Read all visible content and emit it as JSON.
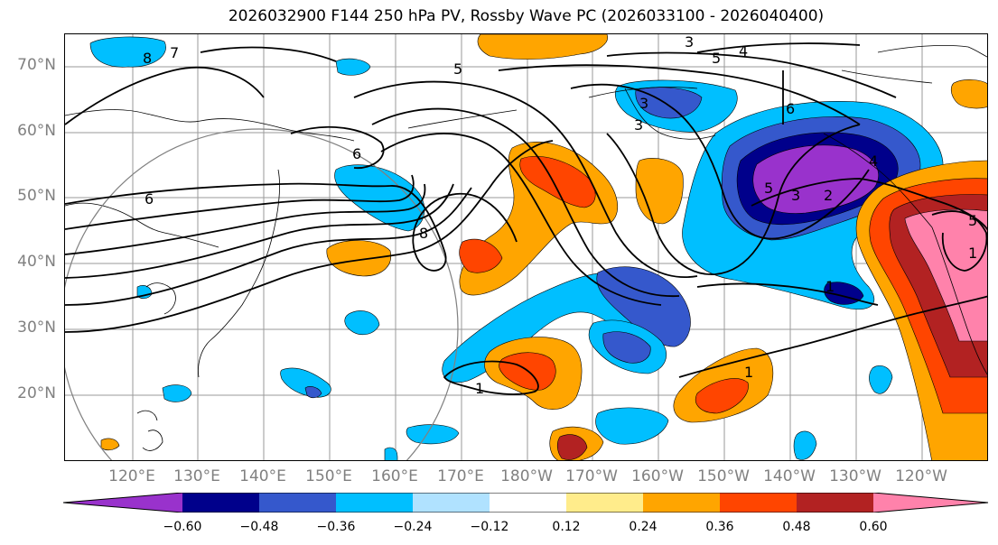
{
  "title": "2026032900 F144 250 hPa PV, Rossby Wave PC (2026033100 - 2026040400)",
  "lat_labels": [
    "70°N",
    "60°N",
    "50°N",
    "40°N",
    "30°N",
    "20°N"
  ],
  "lon_labels": [
    "120°E",
    "130°E",
    "140°E",
    "150°E",
    "160°E",
    "170°E",
    "180°W",
    "170°W",
    "160°W",
    "150°W",
    "140°W",
    "130°W",
    "120°W"
  ],
  "colorbar": {
    "ticks": [
      "−0.60",
      "−0.48",
      "−0.36",
      "−0.24",
      "−0.12",
      "0.12",
      "0.24",
      "0.36",
      "0.48",
      "0.60"
    ],
    "colors": [
      "#9932cc",
      "#00008b",
      "#3558cc",
      "#00bfff",
      "#b0e2ff",
      "#ffffff",
      "#ffec8b",
      "#ffa500",
      "#ff4500",
      "#b22222",
      "#ff82ab"
    ]
  },
  "contour_labels": [
    "3",
    "5",
    "4",
    "8",
    "7",
    "6",
    "6",
    "8",
    "3",
    "5",
    "3",
    "2",
    "4",
    "5",
    "1",
    "1",
    "1",
    "1",
    "6",
    "5",
    "3"
  ]
}
